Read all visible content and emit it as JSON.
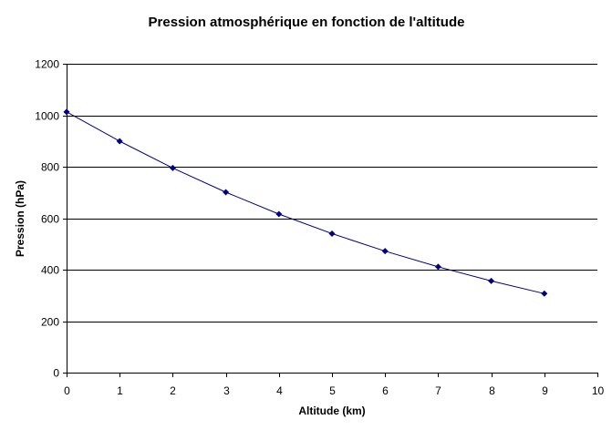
{
  "chart_data": {
    "type": "line",
    "title": "Pression atmosphérique en fonction de l'altitude",
    "xlabel": "Altitude (km)",
    "ylabel": "Pression (hPa)",
    "xlim": [
      0,
      10
    ],
    "ylim": [
      0,
      1200
    ],
    "x_ticks": [
      "0",
      "1",
      "2",
      "3",
      "4",
      "5",
      "6",
      "7",
      "8",
      "9",
      "10"
    ],
    "y_ticks": [
      "0",
      "200",
      "400",
      "600",
      "800",
      "1000",
      "1200"
    ],
    "grid": "horizontal",
    "legend": "none",
    "series": [
      {
        "color": "#000080",
        "marker": "diamond",
        "x": [
          0,
          1,
          2,
          3,
          4,
          5,
          6,
          7,
          8,
          9
        ],
        "y": [
          1013,
          899,
          795,
          701,
          616,
          540,
          472,
          411,
          356,
          307
        ]
      }
    ]
  }
}
